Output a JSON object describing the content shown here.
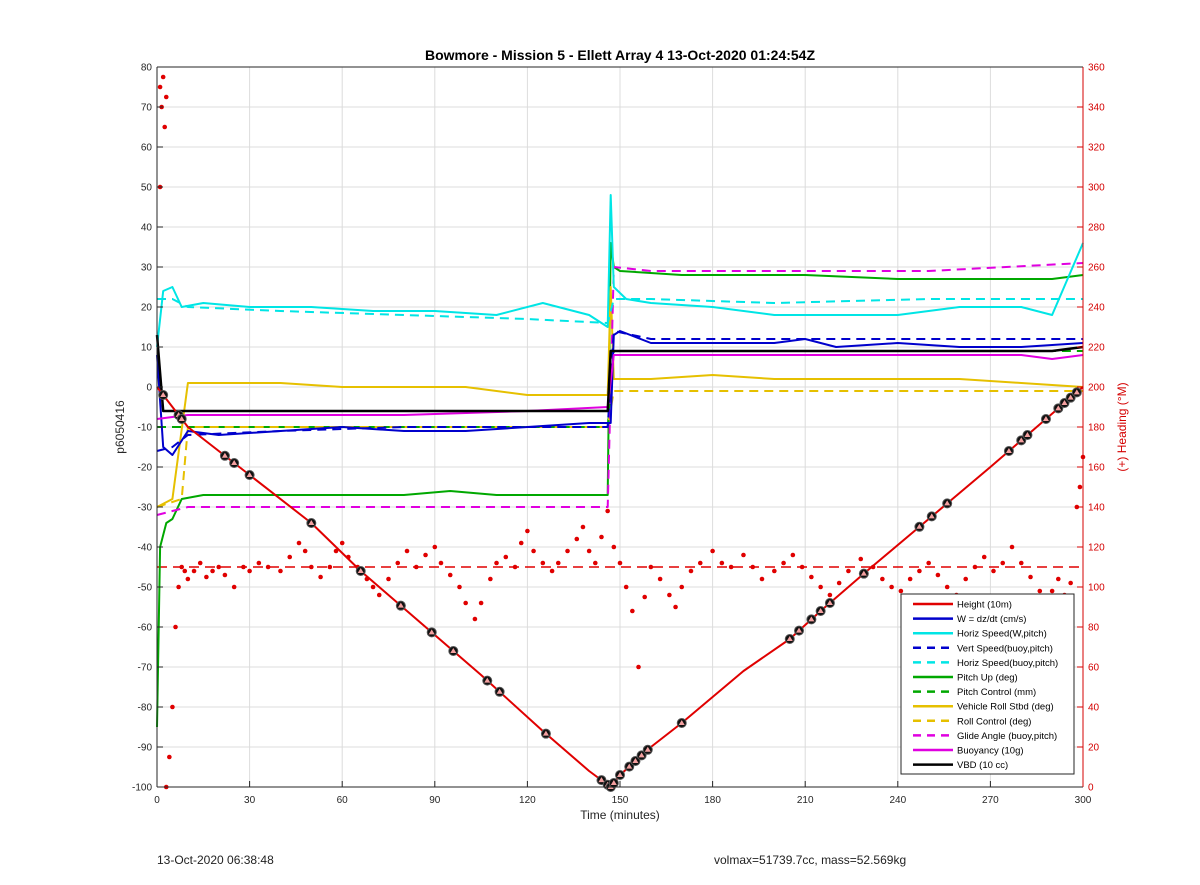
{
  "footer": {
    "date": "13-Oct-2020 06:38:48",
    "stats": "volmax=51739.7cc, mass=52.569kg"
  },
  "chart_data": {
    "type": "line",
    "title": "Bowmore - Mission 5 - Ellett Array 4 13-Oct-2020 01:24:54Z",
    "xlabel": "Time (minutes)",
    "ylabel": "p6050416",
    "y2label": "(+) Heading (°M)",
    "xlim": [
      0,
      300
    ],
    "ylim": [
      -100,
      80
    ],
    "y2lim": [
      0,
      360
    ],
    "xticks": [
      "0",
      "30",
      "60",
      "90",
      "120",
      "150",
      "180",
      "210",
      "240",
      "270",
      "300"
    ],
    "yticks": [
      "80",
      "70",
      "60",
      "50",
      "40",
      "30",
      "20",
      "10",
      "0",
      "-10",
      "-20",
      "-30",
      "-40",
      "-50",
      "-60",
      "-70",
      "-80",
      "-90",
      "-100"
    ],
    "y2ticks": [
      "360",
      "340",
      "320",
      "300",
      "280",
      "260",
      "240",
      "220",
      "200",
      "180",
      "160",
      "140",
      "120",
      "100",
      "80",
      "60",
      "40",
      "20",
      "0"
    ],
    "legend_position": "bottom-right",
    "series": [
      {
        "name": "Height (10m)",
        "color": "#e00000",
        "style": "solid",
        "x": [
          0,
          10,
          30,
          50,
          66,
          90,
          105,
          125,
          140,
          147,
          150,
          160,
          170,
          190,
          205,
          215,
          230,
          250,
          270,
          285,
          300
        ],
        "values": [
          0,
          -10,
          -22,
          -34,
          -46,
          -62,
          -72,
          -86,
          -96,
          -100,
          -97,
          -90,
          -84,
          -71,
          -63,
          -56,
          -46,
          -33,
          -20,
          -10,
          0
        ]
      },
      {
        "name": "W = dz/dt (cm/s)",
        "color": "#0000cc",
        "style": "solid",
        "x": [
          0,
          2,
          5,
          10,
          20,
          40,
          60,
          80,
          100,
          120,
          140,
          146,
          147,
          148,
          150,
          160,
          180,
          200,
          210,
          220,
          240,
          260,
          280,
          300
        ],
        "values": [
          8,
          -15,
          -17,
          -11,
          -12,
          -11,
          -10,
          -11,
          -11,
          -10,
          -9,
          -9,
          -9,
          13,
          14,
          11,
          11,
          11,
          12,
          10,
          11,
          10,
          10,
          11
        ]
      },
      {
        "name": "Horiz Speed(W,pitch)",
        "color": "#00e5e5",
        "style": "solid",
        "x": [
          0,
          2,
          5,
          8,
          15,
          30,
          50,
          70,
          90,
          110,
          125,
          140,
          146,
          147,
          148,
          152,
          160,
          180,
          200,
          220,
          240,
          260,
          280,
          290,
          300
        ],
        "values": [
          10,
          24,
          25,
          20,
          21,
          20,
          20,
          19,
          19,
          18,
          21,
          18,
          15,
          48,
          25,
          22,
          21,
          20,
          18,
          18,
          18,
          20,
          20,
          18,
          36
        ]
      },
      {
        "name": "Vert Speed(buoy,pitch)",
        "color": "#0000cc",
        "style": "dashed",
        "x": [
          0,
          5,
          10,
          40,
          80,
          120,
          146,
          148,
          160,
          200,
          250,
          300
        ],
        "values": [
          -16,
          -15,
          -12,
          -11,
          -10,
          -10,
          -10,
          14,
          12,
          12,
          12,
          12
        ]
      },
      {
        "name": "Horiz Speed(buoy,pitch)",
        "color": "#00e5e5",
        "style": "dashed",
        "x": [
          0,
          5,
          10,
          40,
          80,
          120,
          146,
          148,
          160,
          200,
          250,
          300
        ],
        "values": [
          22,
          22,
          20,
          19,
          18,
          17,
          16,
          22,
          22,
          21,
          22,
          22
        ]
      },
      {
        "name": "Pitch Up (deg)",
        "color": "#00a800",
        "style": "solid",
        "x": [
          0,
          1,
          3,
          5,
          8,
          15,
          40,
          60,
          80,
          95,
          110,
          130,
          146,
          147,
          148,
          150,
          170,
          190,
          210,
          240,
          270,
          290,
          300
        ],
        "values": [
          -85,
          -40,
          -34,
          -33,
          -28,
          -27,
          -27,
          -27,
          -27,
          -26,
          -27,
          -27,
          -27,
          36,
          30,
          29,
          28,
          28,
          28,
          27,
          27,
          27,
          28
        ]
      },
      {
        "name": "Pitch Control (mm)",
        "color": "#00a800",
        "style": "dashed",
        "x": [
          0,
          5,
          10,
          60,
          100,
          146,
          148,
          170,
          210,
          250,
          300
        ],
        "values": [
          -10,
          -10,
          -10,
          -10,
          -10,
          -10,
          9,
          9,
          9,
          9,
          9
        ]
      },
      {
        "name": "Vehicle Roll Stbd (deg)",
        "color": "#e6c000",
        "style": "solid",
        "x": [
          0,
          5,
          10,
          20,
          40,
          60,
          80,
          100,
          120,
          146,
          147,
          148,
          160,
          180,
          200,
          220,
          240,
          260,
          280,
          300
        ],
        "values": [
          -30,
          -28,
          1,
          1,
          1,
          0,
          0,
          0,
          -2,
          -2,
          25,
          2,
          2,
          3,
          2,
          2,
          2,
          2,
          1,
          0
        ]
      },
      {
        "name": "Roll Control (deg)",
        "color": "#e6c000",
        "style": "dashed",
        "x": [
          0,
          8,
          10,
          40,
          80,
          120,
          146,
          148,
          160,
          200,
          250,
          300
        ],
        "values": [
          -30,
          -28,
          -10,
          -10,
          -10,
          -10,
          -10,
          -1,
          -1,
          -1,
          -1,
          -1
        ]
      },
      {
        "name": "Glide Angle (buoy,pitch)",
        "color": "#e000e0",
        "style": "dashed",
        "x": [
          0,
          5,
          10,
          40,
          80,
          120,
          146,
          148,
          160,
          200,
          250,
          300
        ],
        "values": [
          -32,
          -31,
          -30,
          -30,
          -30,
          -30,
          -30,
          30,
          29,
          29,
          29,
          31
        ]
      },
      {
        "name": "Buoyancy (10g)",
        "color": "#e000e0",
        "style": "solid",
        "x": [
          0,
          10,
          40,
          80,
          120,
          146,
          148,
          200,
          250,
          280,
          290,
          300
        ],
        "values": [
          -8,
          -7,
          -7,
          -7,
          -6,
          -5,
          8,
          8,
          8,
          8,
          7,
          8
        ]
      },
      {
        "name": "VBD (10 cc)",
        "color": "#000000",
        "style": "solid",
        "x": [
          0,
          2,
          5,
          40,
          80,
          120,
          146,
          147,
          148,
          170,
          200,
          250,
          290,
          300
        ],
        "values": [
          13,
          -6,
          -6,
          -6,
          -6,
          -6,
          -6,
          9,
          9,
          9,
          9,
          9,
          9,
          10
        ]
      }
    ],
    "heading_points": [
      [
        1,
        350
      ],
      [
        1.5,
        340
      ],
      [
        2,
        355
      ],
      [
        2.5,
        330
      ],
      [
        3,
        345
      ],
      [
        1,
        300
      ],
      [
        3,
        0
      ],
      [
        4,
        15
      ],
      [
        5,
        40
      ],
      [
        6,
        80
      ],
      [
        7,
        100
      ],
      [
        8,
        110
      ],
      [
        9,
        108
      ],
      [
        10,
        104
      ],
      [
        12,
        108
      ],
      [
        14,
        112
      ],
      [
        16,
        105
      ],
      [
        18,
        108
      ],
      [
        20,
        110
      ],
      [
        22,
        106
      ],
      [
        25,
        100
      ],
      [
        28,
        110
      ],
      [
        30,
        108
      ],
      [
        33,
        112
      ],
      [
        36,
        110
      ],
      [
        40,
        108
      ],
      [
        43,
        115
      ],
      [
        46,
        122
      ],
      [
        48,
        118
      ],
      [
        50,
        110
      ],
      [
        53,
        105
      ],
      [
        56,
        110
      ],
      [
        58,
        118
      ],
      [
        60,
        122
      ],
      [
        62,
        115
      ],
      [
        65,
        110
      ],
      [
        68,
        104
      ],
      [
        70,
        100
      ],
      [
        72,
        96
      ],
      [
        75,
        104
      ],
      [
        78,
        112
      ],
      [
        81,
        118
      ],
      [
        84,
        110
      ],
      [
        87,
        116
      ],
      [
        90,
        120
      ],
      [
        92,
        112
      ],
      [
        95,
        106
      ],
      [
        98,
        100
      ],
      [
        100,
        92
      ],
      [
        103,
        84
      ],
      [
        105,
        92
      ],
      [
        108,
        104
      ],
      [
        110,
        112
      ],
      [
        113,
        115
      ],
      [
        116,
        110
      ],
      [
        118,
        122
      ],
      [
        120,
        128
      ],
      [
        122,
        118
      ],
      [
        125,
        112
      ],
      [
        128,
        108
      ],
      [
        130,
        112
      ],
      [
        133,
        118
      ],
      [
        136,
        124
      ],
      [
        138,
        130
      ],
      [
        140,
        118
      ],
      [
        142,
        112
      ],
      [
        144,
        125
      ],
      [
        146,
        138
      ],
      [
        148,
        120
      ],
      [
        150,
        112
      ],
      [
        152,
        100
      ],
      [
        154,
        88
      ],
      [
        156,
        60
      ],
      [
        158,
        95
      ],
      [
        160,
        110
      ],
      [
        163,
        104
      ],
      [
        166,
        96
      ],
      [
        168,
        90
      ],
      [
        170,
        100
      ],
      [
        173,
        108
      ],
      [
        176,
        112
      ],
      [
        180,
        118
      ],
      [
        183,
        112
      ],
      [
        186,
        110
      ],
      [
        190,
        116
      ],
      [
        193,
        110
      ],
      [
        196,
        104
      ],
      [
        200,
        108
      ],
      [
        203,
        112
      ],
      [
        206,
        116
      ],
      [
        209,
        110
      ],
      [
        212,
        105
      ],
      [
        215,
        100
      ],
      [
        218,
        96
      ],
      [
        221,
        102
      ],
      [
        224,
        108
      ],
      [
        228,
        114
      ],
      [
        232,
        110
      ],
      [
        235,
        104
      ],
      [
        238,
        100
      ],
      [
        241,
        98
      ],
      [
        244,
        104
      ],
      [
        247,
        108
      ],
      [
        250,
        112
      ],
      [
        253,
        106
      ],
      [
        256,
        100
      ],
      [
        259,
        96
      ],
      [
        262,
        104
      ],
      [
        265,
        110
      ],
      [
        268,
        115
      ],
      [
        271,
        108
      ],
      [
        274,
        112
      ],
      [
        277,
        120
      ],
      [
        280,
        112
      ],
      [
        283,
        105
      ],
      [
        286,
        98
      ],
      [
        288,
        92
      ],
      [
        290,
        98
      ],
      [
        292,
        104
      ],
      [
        294,
        96
      ],
      [
        296,
        102
      ],
      [
        298,
        140
      ],
      [
        299,
        150
      ],
      [
        300,
        165
      ]
    ],
    "heading_mean": 110,
    "markers_x": [
      2,
      7,
      8,
      22,
      25,
      30,
      50,
      66,
      79,
      89,
      96,
      107,
      111,
      126,
      144,
      146,
      147,
      148,
      150,
      153,
      155,
      157,
      159,
      170,
      205,
      208,
      212,
      215,
      218,
      229,
      247,
      251,
      256,
      276,
      280,
      282,
      288,
      292,
      294,
      296,
      298
    ]
  }
}
